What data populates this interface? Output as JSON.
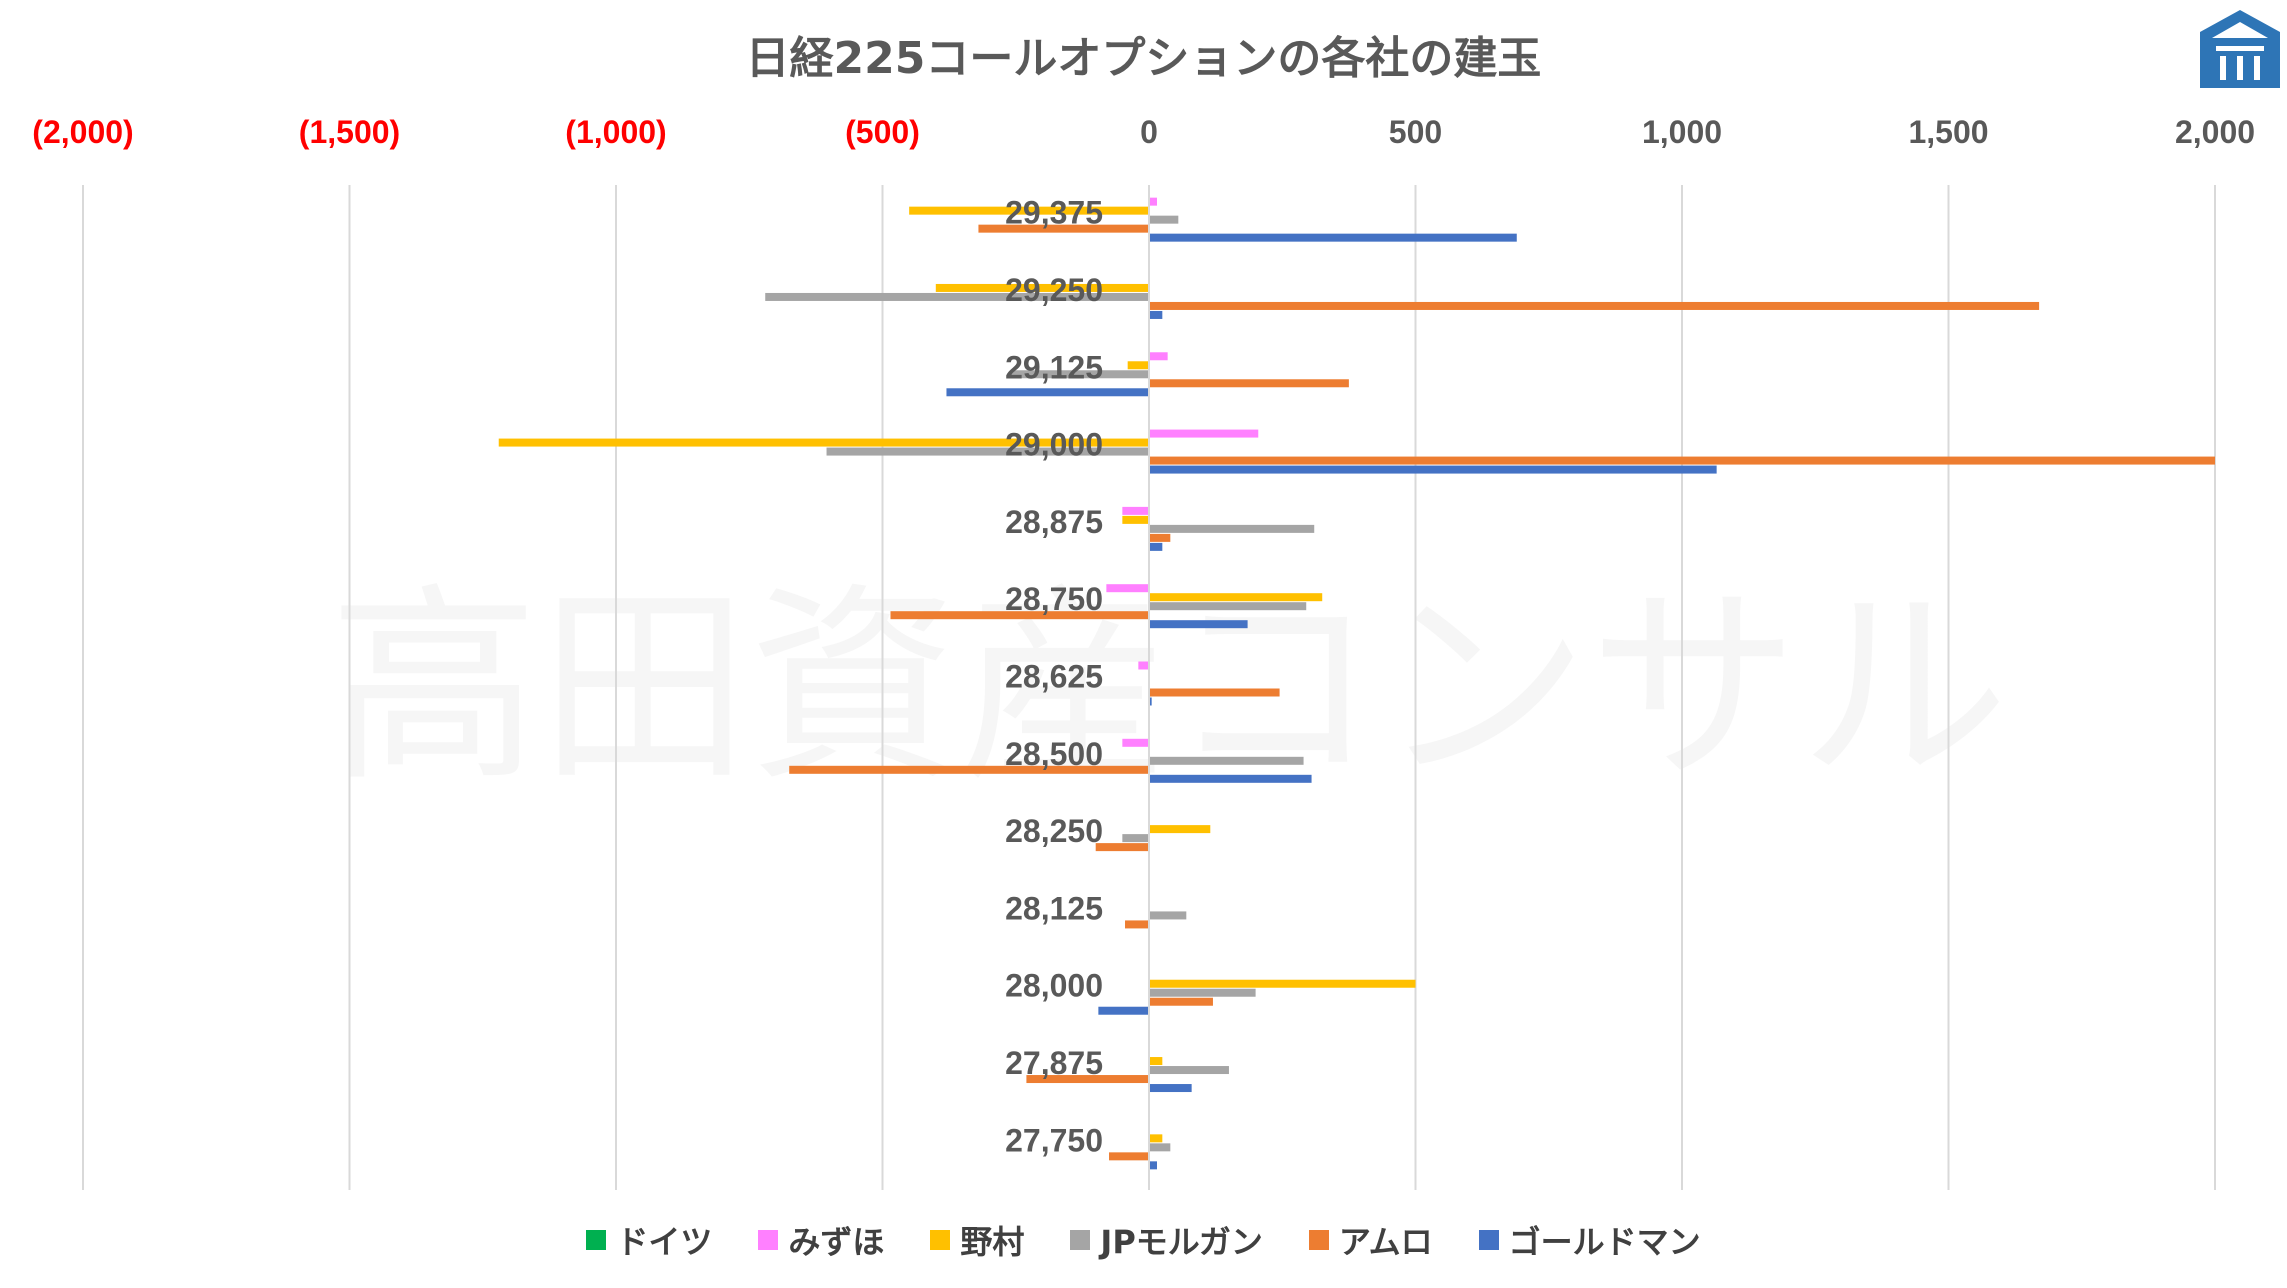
{
  "chart_data": {
    "type": "bar",
    "orientation": "horizontal",
    "title": "日経225コールオプションの各社の建玉",
    "xlim": [
      -2000,
      2000
    ],
    "x_ticks": [
      -2000,
      -1500,
      -1000,
      -500,
      0,
      500,
      1000,
      1500,
      2000
    ],
    "x_tick_labels": [
      "(2,000)",
      "(1,500)",
      "(1,000)",
      "(500)",
      "0",
      "500",
      "1,000",
      "1,500",
      "2,000"
    ],
    "negative_tick_color": "#FF0000",
    "positive_tick_color": "#595959",
    "grid": true,
    "legend_position": "bottom",
    "categories": [
      "29,375",
      "29,250",
      "29,125",
      "29,000",
      "28,875",
      "28,750",
      "28,625",
      "28,500",
      "28,250",
      "28,125",
      "28,000",
      "27,875",
      "27,750"
    ],
    "series": [
      {
        "name": "ドイツ",
        "color": "#00B050",
        "values": [
          0,
          0,
          0,
          0,
          0,
          0,
          0,
          0,
          0,
          0,
          0,
          0,
          0
        ]
      },
      {
        "name": "みずほ",
        "color": "#FF80FF",
        "values": [
          15,
          0,
          35,
          205,
          -50,
          -80,
          -20,
          -50,
          0,
          0,
          0,
          0,
          0
        ]
      },
      {
        "name": "野村",
        "color": "#FFC000",
        "values": [
          -450,
          -400,
          -40,
          -1220,
          -50,
          325,
          0,
          0,
          115,
          0,
          500,
          25,
          25
        ]
      },
      {
        "name": "JPモルガン",
        "color": "#A5A5A5",
        "values": [
          55,
          -720,
          -260,
          -605,
          310,
          295,
          0,
          290,
          -50,
          70,
          200,
          150,
          40
        ]
      },
      {
        "name": "アムロ",
        "color": "#ED7D31",
        "values": [
          -320,
          1670,
          375,
          2000,
          40,
          -485,
          245,
          -675,
          -100,
          -45,
          120,
          -230,
          -75
        ]
      },
      {
        "name": "ゴールドマン",
        "color": "#4472C4",
        "values": [
          690,
          25,
          -380,
          1065,
          25,
          185,
          5,
          305,
          0,
          0,
          -95,
          80,
          15
        ]
      }
    ]
  },
  "watermark": "高田資産コンサル",
  "logo_icon": "building-logo-icon"
}
